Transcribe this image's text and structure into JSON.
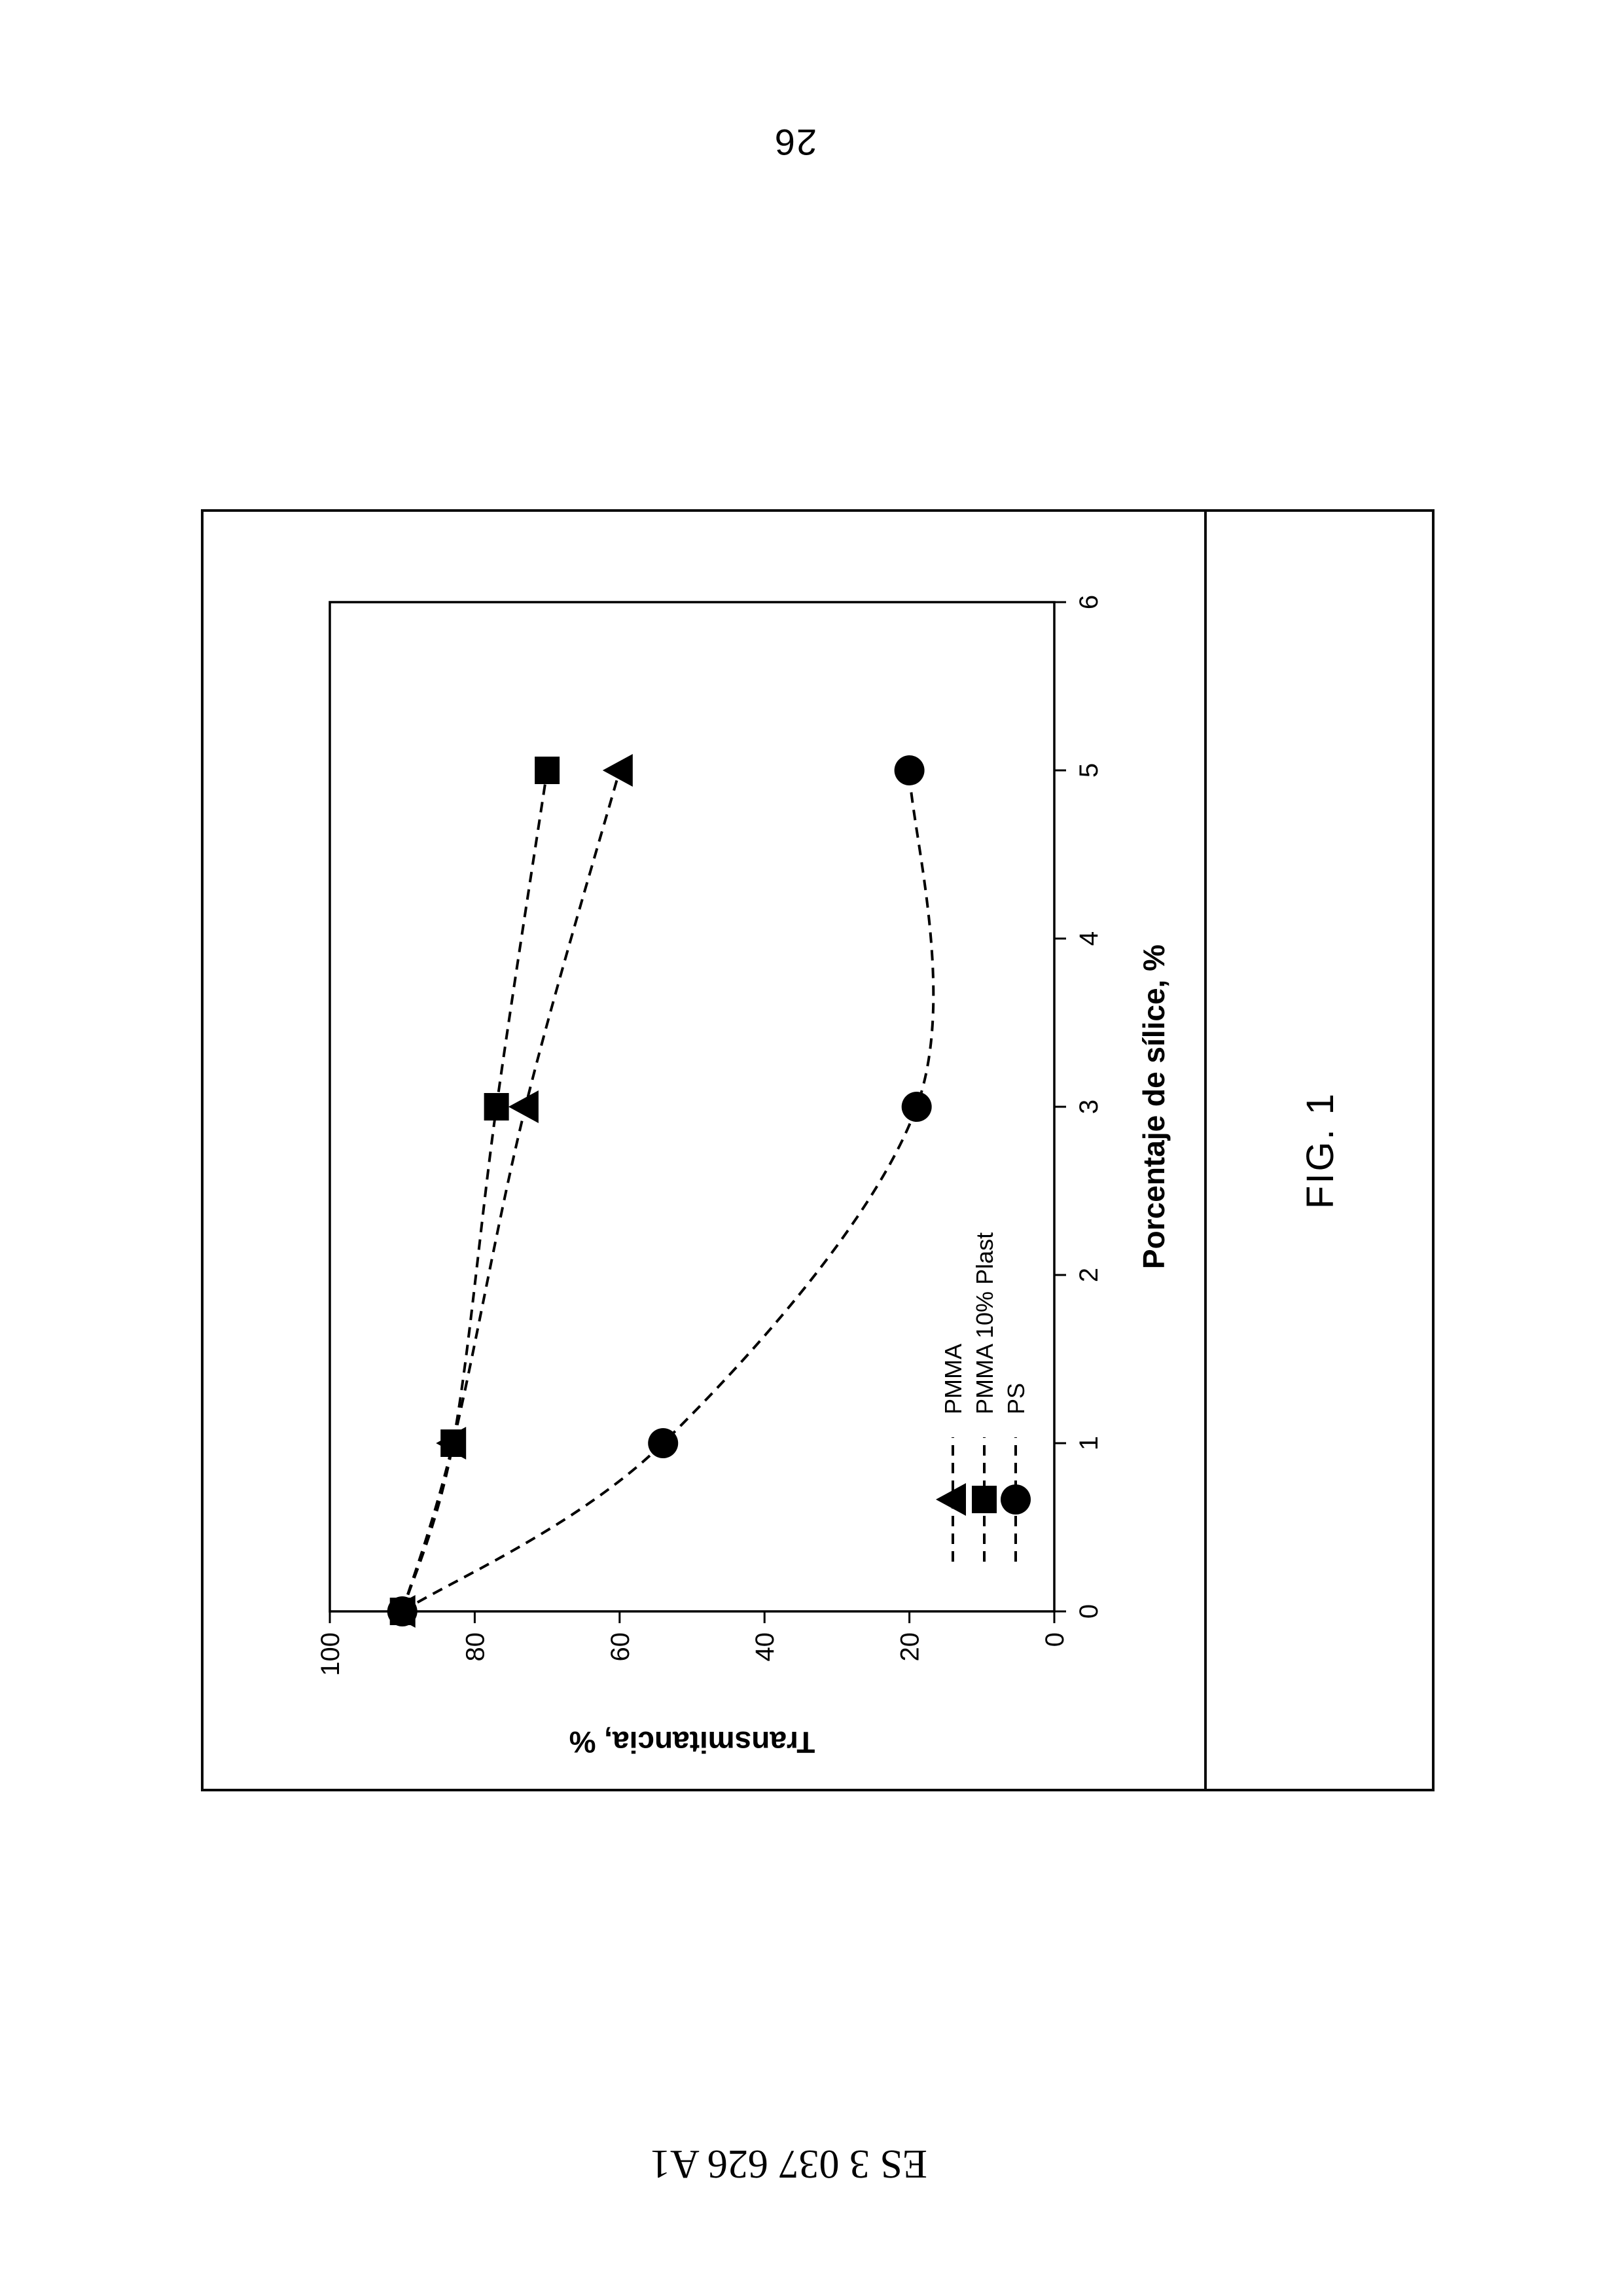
{
  "page": {
    "number": "26",
    "patent_number": "ES 3 037 626 A1",
    "figure_label": "FIG. 1"
  },
  "colors": {
    "ink": "#000000",
    "paper": "#ffffff"
  },
  "chart_data": {
    "type": "line",
    "title": "",
    "xlabel": "Porcentaje de sílice, %",
    "ylabel": "Transmitancia, %",
    "x": [
      0,
      1,
      3,
      5
    ],
    "xlim": [
      0,
      6
    ],
    "ylim": [
      0,
      100
    ],
    "xticks": [
      0,
      1,
      2,
      3,
      4,
      5,
      6
    ],
    "yticks": [
      0,
      20,
      40,
      60,
      80,
      100
    ],
    "grid": false,
    "line_style": "dashed",
    "legend_position": "lower-left-inside",
    "series": [
      {
        "name": "PMMA",
        "marker": "triangle",
        "values": [
          90,
          83,
          73,
          60
        ]
      },
      {
        "name": "PMMA 10% Plast",
        "marker": "square",
        "values": [
          90,
          83,
          77,
          70
        ]
      },
      {
        "name": "PS",
        "marker": "circle",
        "values": [
          90,
          54,
          19,
          20
        ]
      }
    ]
  }
}
